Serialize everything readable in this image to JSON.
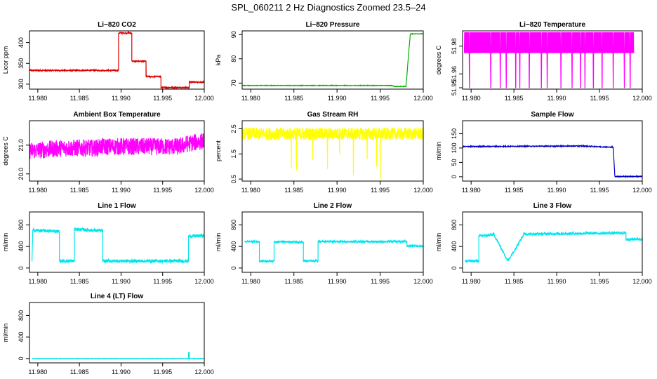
{
  "page": {
    "title": "SPL_060211  2 Hz Diagnostics Zoomed 23.5–24"
  },
  "colors": {
    "red": "#e00000",
    "green": "#00b000",
    "magenta": "#ff00ff",
    "yellow": "#ffff00",
    "blue": "#0000c8",
    "cyan": "#00e5ee"
  },
  "chart_data": [
    {
      "id": "co2",
      "type": "line",
      "title": "Li−820 CO2",
      "ylabel": "Licor ppm",
      "color": "red",
      "xlim": [
        11.979,
        12.0
      ],
      "ylim": [
        288,
        428
      ],
      "xticks": [
        11.98,
        11.985,
        11.99,
        11.995,
        12.0
      ],
      "xtick_labels": [
        "11.980",
        "11.985",
        "11.990",
        "11.995",
        "12.000"
      ],
      "yticks": [
        300,
        350,
        400
      ],
      "ytick_labels": [
        "300",
        "350",
        "400"
      ],
      "x": [
        11.979,
        11.9897,
        11.9897,
        11.9913,
        11.9913,
        11.993,
        11.993,
        11.9948,
        11.9948,
        11.9982,
        11.9982,
        12.0
      ],
      "y": [
        333,
        333,
        423,
        423,
        355,
        355,
        318,
        318,
        292,
        292,
        305,
        305
      ],
      "noise": 1.5
    },
    {
      "id": "pressure",
      "type": "line",
      "title": "Li−820 Pressure",
      "ylabel": "kPa",
      "color": "green",
      "xlim": [
        11.979,
        12.0
      ],
      "ylim": [
        67.5,
        91.5
      ],
      "xticks": [
        11.98,
        11.985,
        11.99,
        11.995,
        12.0
      ],
      "xtick_labels": [
        "11.980",
        "11.985",
        "11.990",
        "11.995",
        "12.000"
      ],
      "yticks": [
        70,
        80,
        90
      ],
      "ytick_labels": [
        "70",
        "80",
        "90"
      ],
      "x": [
        11.979,
        11.9964,
        11.9966,
        11.998,
        11.9983,
        11.9985,
        12.0
      ],
      "y": [
        69,
        69,
        68.6,
        68.6,
        82,
        90.3,
        90.3
      ],
      "noise": 0.1
    },
    {
      "id": "temperature",
      "type": "line",
      "title": "Li−820 Temperature",
      "ylabel": "degrees C",
      "color": "magenta",
      "xlim": [
        11.979,
        12.0
      ],
      "ylim": [
        51.949,
        51.991
      ],
      "xticks": [
        11.98,
        11.985,
        11.99,
        11.995,
        12.0
      ],
      "xtick_labels": [
        "11.980",
        "11.985",
        "11.990",
        "11.995",
        "12.000"
      ],
      "yticks": [
        51.95,
        51.96,
        51.98
      ],
      "ytick_labels": [
        "51.95",
        "51.96",
        "51.98"
      ],
      "levels": [
        51.975,
        51.99
      ],
      "low_level": 51.95,
      "dips_x": [
        11.9798,
        11.9823,
        11.9834,
        11.9841,
        11.9852,
        11.9857,
        11.9868,
        11.9882,
        11.9889,
        11.9905,
        11.9918,
        11.9928,
        11.9933,
        11.9943,
        11.9953,
        11.9966,
        11.9979,
        11.9986,
        11.9993
      ]
    },
    {
      "id": "ambient",
      "type": "line",
      "title": "Ambient Box Temperature",
      "ylabel": "degrees C",
      "color": "magenta",
      "xlim": [
        11.979,
        12.0
      ],
      "ylim": [
        19.75,
        21.85
      ],
      "xticks": [
        11.98,
        11.985,
        11.99,
        11.995,
        12.0
      ],
      "xtick_labels": [
        "11.980",
        "11.985",
        "11.990",
        "11.995",
        "12.000"
      ],
      "yticks": [
        20.0,
        21.0
      ],
      "ytick_labels": [
        "20.0",
        "21.0"
      ],
      "x": [
        11.979,
        11.983,
        11.9872,
        11.9873,
        11.997,
        11.998,
        12.0
      ],
      "y": [
        20.8,
        20.9,
        20.9,
        20.95,
        20.95,
        21.05,
        21.15
      ],
      "noise": 0.3
    },
    {
      "id": "rh",
      "type": "line",
      "title": "Gas Stream RH",
      "ylabel": "percent",
      "color": "yellow",
      "xlim": [
        11.979,
        12.0
      ],
      "ylim": [
        0.42,
        2.82
      ],
      "xticks": [
        11.98,
        11.985,
        11.99,
        11.995,
        12.0
      ],
      "xtick_labels": [
        "11.980",
        "11.985",
        "11.990",
        "11.995",
        "12.000"
      ],
      "yticks": [
        0.5,
        1.5,
        2.5
      ],
      "ytick_labels": [
        "0.5",
        "1.5",
        "2.5"
      ],
      "x": [
        11.979,
        12.0
      ],
      "y": [
        2.3,
        2.3
      ],
      "noise": 0.25,
      "dips_x": [
        11.9847,
        11.9853,
        11.9872,
        11.9889,
        11.9903,
        11.9919,
        11.9935,
        11.9946,
        11.995
      ],
      "dips_y": [
        0.95,
        0.85,
        1.25,
        0.9,
        1.5,
        0.65,
        1.3,
        1.0,
        0.5
      ]
    },
    {
      "id": "sample",
      "type": "line",
      "title": "Sample Flow",
      "ylabel": "ml/min",
      "color": "blue",
      "xlim": [
        11.979,
        12.0
      ],
      "ylim": [
        -15,
        195
      ],
      "xticks": [
        11.98,
        11.985,
        11.99,
        11.995,
        12.0
      ],
      "xtick_labels": [
        "11.980",
        "11.985",
        "11.990",
        "11.995",
        "12.000"
      ],
      "yticks": [
        0,
        50,
        100,
        150
      ],
      "ytick_labels": [
        "0",
        "50",
        "100",
        "150"
      ],
      "x": [
        11.979,
        11.9931,
        11.9962,
        11.9966,
        11.9968,
        12.0
      ],
      "y": [
        105,
        107,
        103,
        103,
        1,
        1
      ],
      "noise": 1.5
    },
    {
      "id": "line1",
      "type": "line",
      "title": "Line 1 Flow",
      "ylabel": "ml/min",
      "color": "cyan",
      "xlim": [
        11.979,
        12.0
      ],
      "ylim": [
        -80,
        1040
      ],
      "xticks": [
        11.98,
        11.985,
        11.99,
        11.995,
        12.0
      ],
      "xtick_labels": [
        "11.980",
        "11.985",
        "11.990",
        "11.995",
        "12.000"
      ],
      "yticks": [
        0,
        400,
        800
      ],
      "ytick_labels": [
        "0",
        "400",
        "800"
      ],
      "x": [
        11.9793,
        11.9794,
        11.9826,
        11.9826,
        11.9844,
        11.9844,
        11.9878,
        11.9878,
        11.9981,
        11.9981,
        12.0
      ],
      "y": [
        130,
        700,
        680,
        130,
        130,
        720,
        690,
        130,
        130,
        590,
        600
      ],
      "noise": 30
    },
    {
      "id": "line2",
      "type": "line",
      "title": "Line 2 Flow",
      "ylabel": "ml/min",
      "color": "cyan",
      "xlim": [
        11.979,
        12.0
      ],
      "ylim": [
        -80,
        1040
      ],
      "xticks": [
        11.98,
        11.985,
        11.99,
        11.995,
        12.0
      ],
      "xtick_labels": [
        "11.980",
        "11.985",
        "11.990",
        "11.995",
        "12.000"
      ],
      "yticks": [
        0,
        400,
        800
      ],
      "ytick_labels": [
        "0",
        "400",
        "800"
      ],
      "x": [
        11.9793,
        11.981,
        11.981,
        11.9827,
        11.9827,
        11.9861,
        11.9861,
        11.9878,
        11.9878,
        11.9981,
        11.9981,
        12.0
      ],
      "y": [
        490,
        490,
        130,
        130,
        490,
        480,
        130,
        130,
        490,
        490,
        410,
        410
      ],
      "noise": 18
    },
    {
      "id": "line3",
      "type": "line",
      "title": "Line 3 Flow",
      "ylabel": "ml/min",
      "color": "cyan",
      "xlim": [
        11.979,
        12.0
      ],
      "ylim": [
        -80,
        1040
      ],
      "xticks": [
        11.98,
        11.985,
        11.99,
        11.995,
        12.0
      ],
      "xtick_labels": [
        "11.980",
        "11.985",
        "11.990",
        "11.995",
        "12.000"
      ],
      "yticks": [
        0,
        400,
        800
      ],
      "ytick_labels": [
        "0",
        "400",
        "800"
      ],
      "x": [
        11.9793,
        11.9793,
        11.9809,
        11.9809,
        11.9826,
        11.9826,
        11.9843,
        11.9843,
        11.9861,
        11.9861,
        11.9981,
        11.9981,
        12.0
      ],
      "y": [
        620,
        130,
        130,
        590,
        620,
        640,
        130,
        130,
        610,
        630,
        650,
        530,
        540
      ],
      "noise": 25
    },
    {
      "id": "line4",
      "type": "line",
      "title": "Line 4 (LT) Flow",
      "ylabel": "ml/min",
      "color": "cyan",
      "xlim": [
        11.979,
        12.0
      ],
      "ylim": [
        -80,
        1040
      ],
      "xticks": [
        11.98,
        11.985,
        11.99,
        11.995,
        12.0
      ],
      "xtick_labels": [
        "11.980",
        "11.985",
        "11.990",
        "11.995",
        "12.000"
      ],
      "yticks": [
        0,
        400,
        800
      ],
      "ytick_labels": [
        "0",
        "400",
        "800"
      ],
      "x": [
        11.9793,
        11.9981,
        11.9981,
        11.9982,
        11.9982,
        12.0
      ],
      "y": [
        0,
        0,
        110,
        110,
        0,
        0
      ],
      "noise": 3
    }
  ]
}
